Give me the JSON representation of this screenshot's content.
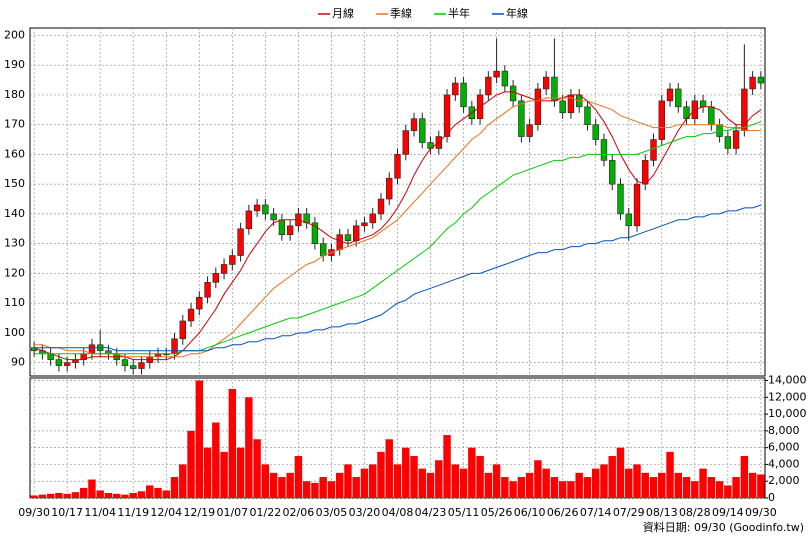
{
  "chart_data": {
    "type": "candlestick",
    "categories": [
      "09/30",
      null,
      null,
      null,
      "10/17",
      null,
      null,
      null,
      "11/04",
      null,
      null,
      null,
      "11/19",
      null,
      null,
      null,
      "12/04",
      null,
      null,
      null,
      "12/19",
      null,
      null,
      null,
      "01/07",
      null,
      null,
      null,
      "01/22",
      null,
      null,
      null,
      "02/06",
      null,
      null,
      null,
      "03/05",
      null,
      null,
      null,
      "03/20",
      null,
      null,
      null,
      "04/08",
      null,
      null,
      null,
      "04/23",
      null,
      null,
      null,
      "05/11",
      null,
      null,
      null,
      "05/26",
      null,
      null,
      null,
      "06/10",
      null,
      null,
      null,
      "06/26",
      null,
      null,
      null,
      "07/14",
      null,
      null,
      null,
      "07/29",
      null,
      null,
      null,
      "08/13",
      null,
      null,
      null,
      "08/28",
      null,
      null,
      null,
      "09/14",
      null,
      null,
      null,
      "09/30"
    ],
    "open": [
      95,
      94,
      93,
      91,
      89,
      90,
      91,
      93,
      96,
      94,
      93,
      91,
      89,
      88,
      90,
      92,
      93,
      93,
      98,
      104,
      108,
      112,
      117,
      120,
      123,
      126,
      135,
      141,
      143,
      140,
      138,
      133,
      136,
      140,
      137,
      130,
      126,
      128,
      133,
      131,
      136,
      137,
      140,
      145,
      152,
      160,
      168,
      172,
      164,
      162,
      166,
      180,
      184,
      176,
      172,
      180,
      186,
      188,
      183,
      178,
      166,
      170,
      182,
      186,
      178,
      174,
      180,
      176,
      170,
      165,
      158,
      150,
      140,
      136,
      150,
      158,
      165,
      178,
      182,
      176,
      172,
      178,
      176,
      170,
      166,
      162,
      168,
      182,
      186
    ],
    "high": [
      97,
      96,
      95,
      93,
      92,
      93,
      95,
      98,
      101,
      96,
      95,
      93,
      91,
      92,
      94,
      95,
      95,
      100,
      106,
      110,
      114,
      119,
      122,
      125,
      128,
      137,
      143,
      145,
      145,
      142,
      140,
      138,
      142,
      142,
      139,
      132,
      130,
      135,
      135,
      138,
      139,
      142,
      147,
      154,
      162,
      170,
      174,
      174,
      166,
      168,
      182,
      186,
      186,
      178,
      182,
      188,
      199,
      190,
      185,
      180,
      172,
      184,
      188,
      199,
      180,
      182,
      182,
      178,
      172,
      167,
      160,
      152,
      142,
      152,
      160,
      167,
      180,
      184,
      184,
      178,
      180,
      180,
      178,
      172,
      168,
      170,
      197,
      188,
      188
    ],
    "low": [
      92,
      91,
      89,
      87,
      87,
      88,
      89,
      91,
      92,
      91,
      89,
      87,
      86,
      86,
      88,
      90,
      91,
      91,
      96,
      102,
      106,
      110,
      115,
      118,
      121,
      124,
      133,
      139,
      138,
      136,
      131,
      131,
      134,
      135,
      128,
      124,
      124,
      126,
      129,
      129,
      134,
      135,
      138,
      143,
      150,
      158,
      166,
      162,
      160,
      160,
      164,
      178,
      174,
      170,
      170,
      178,
      184,
      181,
      176,
      164,
      164,
      168,
      180,
      176,
      172,
      172,
      174,
      168,
      163,
      156,
      148,
      138,
      131,
      134,
      148,
      156,
      163,
      176,
      174,
      170,
      170,
      174,
      168,
      164,
      160,
      160,
      166,
      180,
      182
    ],
    "close": [
      94,
      93,
      91,
      89,
      90,
      91,
      93,
      96,
      94,
      93,
      91,
      89,
      88,
      90,
      92,
      93,
      93,
      98,
      104,
      108,
      112,
      117,
      120,
      123,
      126,
      135,
      141,
      143,
      140,
      138,
      133,
      136,
      140,
      137,
      130,
      126,
      128,
      133,
      131,
      136,
      137,
      140,
      145,
      152,
      160,
      168,
      172,
      164,
      162,
      166,
      180,
      184,
      176,
      172,
      180,
      186,
      188,
      183,
      178,
      166,
      170,
      182,
      186,
      178,
      174,
      180,
      176,
      170,
      165,
      158,
      150,
      140,
      136,
      150,
      158,
      165,
      178,
      182,
      176,
      172,
      178,
      176,
      170,
      166,
      162,
      168,
      182,
      186,
      184
    ],
    "up_color": "#ff0000",
    "down_color": "#00b000",
    "series": [
      {
        "name": "月線",
        "color": "#cc0000",
        "values": [
          95,
          94,
          93,
          92,
          91,
          91,
          91,
          92,
          92,
          92,
          92,
          92,
          91,
          91,
          91,
          91,
          91,
          92,
          94,
          97,
          100,
          104,
          108,
          113,
          117,
          121,
          126,
          130,
          134,
          137,
          138,
          138,
          138,
          137,
          136,
          134,
          132,
          131,
          130,
          131,
          132,
          133,
          135,
          138,
          142,
          147,
          153,
          158,
          162,
          164,
          167,
          170,
          172,
          174,
          176,
          178,
          180,
          181,
          181,
          180,
          179,
          178,
          178,
          178,
          179,
          180,
          180,
          178,
          175,
          171,
          166,
          160,
          155,
          151,
          150,
          153,
          158,
          163,
          168,
          172,
          175,
          176,
          176,
          175,
          172,
          170,
          170,
          173,
          175
        ]
      },
      {
        "name": "季線",
        "color": "#e87020",
        "values": [
          96,
          96,
          95,
          95,
          94,
          94,
          94,
          93,
          93,
          93,
          93,
          92,
          92,
          92,
          92,
          92,
          92,
          92,
          92,
          93,
          93,
          94,
          96,
          98,
          100,
          103,
          106,
          109,
          112,
          115,
          117,
          119,
          121,
          123,
          124,
          126,
          127,
          128,
          129,
          130,
          131,
          132,
          134,
          136,
          138,
          141,
          144,
          147,
          150,
          153,
          156,
          159,
          162,
          165,
          167,
          170,
          172,
          174,
          176,
          177,
          178,
          178,
          179,
          179,
          179,
          179,
          178,
          178,
          177,
          176,
          175,
          173,
          172,
          171,
          170,
          169,
          169,
          169,
          170,
          170,
          170,
          170,
          170,
          170,
          169,
          169,
          168,
          168,
          168
        ]
      },
      {
        "name": "半年",
        "color": "#00cc00",
        "values": [
          93,
          93,
          93,
          93,
          93,
          93,
          93,
          93,
          93,
          93,
          93,
          93,
          93,
          93,
          93,
          93,
          93,
          93,
          94,
          94,
          94,
          95,
          96,
          97,
          98,
          99,
          100,
          101,
          102,
          103,
          104,
          105,
          105,
          106,
          107,
          108,
          109,
          110,
          111,
          112,
          113,
          115,
          117,
          119,
          121,
          123,
          125,
          127,
          129,
          132,
          135,
          137,
          140,
          142,
          145,
          147,
          149,
          151,
          153,
          154,
          155,
          156,
          157,
          158,
          158,
          159,
          159,
          160,
          160,
          160,
          160,
          160,
          160,
          160,
          161,
          162,
          163,
          164,
          165,
          166,
          166,
          167,
          167,
          168,
          168,
          169,
          169,
          170,
          171
        ]
      },
      {
        "name": "年線",
        "color": "#0050c8",
        "values": [
          95,
          95,
          95,
          95,
          95,
          95,
          95,
          95,
          95,
          95,
          94,
          94,
          94,
          94,
          94,
          94,
          94,
          94,
          94,
          94,
          94,
          94,
          95,
          95,
          96,
          96,
          97,
          97,
          98,
          98,
          99,
          99,
          100,
          100,
          101,
          101,
          102,
          102,
          103,
          103,
          104,
          105,
          106,
          108,
          110,
          111,
          113,
          114,
          115,
          116,
          117,
          118,
          119,
          120,
          120,
          121,
          122,
          123,
          124,
          125,
          126,
          127,
          127,
          128,
          128,
          129,
          129,
          130,
          130,
          131,
          131,
          132,
          132,
          133,
          134,
          135,
          136,
          137,
          138,
          138,
          139,
          139,
          140,
          140,
          141,
          141,
          142,
          142,
          143
        ]
      }
    ],
    "ylim": [
      85.5,
      202.5
    ],
    "yticks": [
      90,
      100,
      110,
      120,
      130,
      140,
      150,
      160,
      170,
      180,
      190,
      200
    ],
    "volume": {
      "color": "#ff0000",
      "values": [
        300,
        400,
        500,
        600,
        500,
        700,
        1200,
        2200,
        900,
        600,
        500,
        400,
        600,
        800,
        1500,
        1200,
        900,
        2500,
        4000,
        8000,
        14000,
        6000,
        9000,
        5500,
        13000,
        6000,
        12000,
        7000,
        4000,
        3000,
        2500,
        3000,
        5000,
        2000,
        1800,
        2500,
        2000,
        3000,
        4000,
        2500,
        3500,
        4000,
        5500,
        7000,
        4000,
        6000,
        5000,
        3500,
        3000,
        4500,
        7500,
        4000,
        3500,
        6000,
        5000,
        3000,
        4000,
        2500,
        2000,
        2500,
        3000,
        4500,
        3500,
        2500,
        2000,
        2000,
        3000,
        2500,
        3500,
        4000,
        5000,
        6000,
        3500,
        4000,
        3000,
        2500,
        3000,
        5500,
        3000,
        2500,
        2000,
        3500,
        2500,
        2000,
        1500,
        2500,
        5000,
        3000,
        2800
      ]
    },
    "y2lim": [
      0,
      14300
    ],
    "y2ticks": [
      0,
      {
        "value": 2000,
        "label": "2,000"
      },
      {
        "value": 4000,
        "label": "4,000"
      },
      {
        "value": 6000,
        "label": "6,000"
      },
      {
        "value": 8000,
        "label": "8,000"
      },
      {
        "value": 10000,
        "label": "10,000"
      },
      {
        "value": 12000,
        "label": "12,000"
      },
      {
        "value": 14000,
        "label": "14,000"
      }
    ],
    "grid": true,
    "note": "資料日期: 09/30 (Goodinfo.tw)"
  }
}
